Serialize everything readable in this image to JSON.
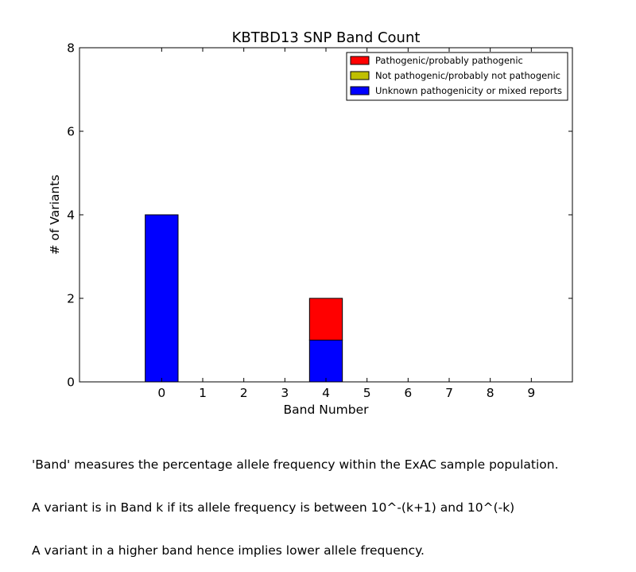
{
  "chart_data": {
    "type": "bar",
    "stacked": true,
    "title": "KBTBD13 SNP Band Count",
    "xlabel": "Band Number",
    "ylabel": "# of Variants",
    "categories": [
      "0",
      "1",
      "2",
      "3",
      "4",
      "5",
      "6",
      "7",
      "8",
      "9"
    ],
    "ylim": [
      0,
      8
    ],
    "yticks": [
      "0",
      "2",
      "4",
      "6",
      "8"
    ],
    "legend_position": "top-right",
    "series": [
      {
        "name": "Pathogenic/probably pathogenic",
        "color": "#ff0000",
        "values": [
          0,
          0,
          0,
          0,
          1,
          0,
          0,
          0,
          0,
          0
        ]
      },
      {
        "name": "Not pathogenic/probably not pathogenic",
        "color": "#bfbf00",
        "values": [
          0,
          0,
          0,
          0,
          0,
          0,
          0,
          0,
          0,
          0
        ]
      },
      {
        "name": "Unknown pathogenicity or mixed reports",
        "color": "#0000ff",
        "values": [
          4,
          0,
          0,
          0,
          1,
          0,
          0,
          0,
          0,
          0
        ]
      }
    ],
    "stack_order": [
      "Unknown pathogenicity or mixed reports",
      "Not pathogenic/probably not pathogenic",
      "Pathogenic/probably pathogenic"
    ]
  },
  "caption": {
    "line1": "'Band' measures the percentage allele frequency within the ExAC sample population.",
    "line2": "A variant is in Band k if its allele frequency is between 10^-(k+1) and 10^(-k)",
    "line3": "A variant in a higher band hence implies lower allele frequency."
  }
}
